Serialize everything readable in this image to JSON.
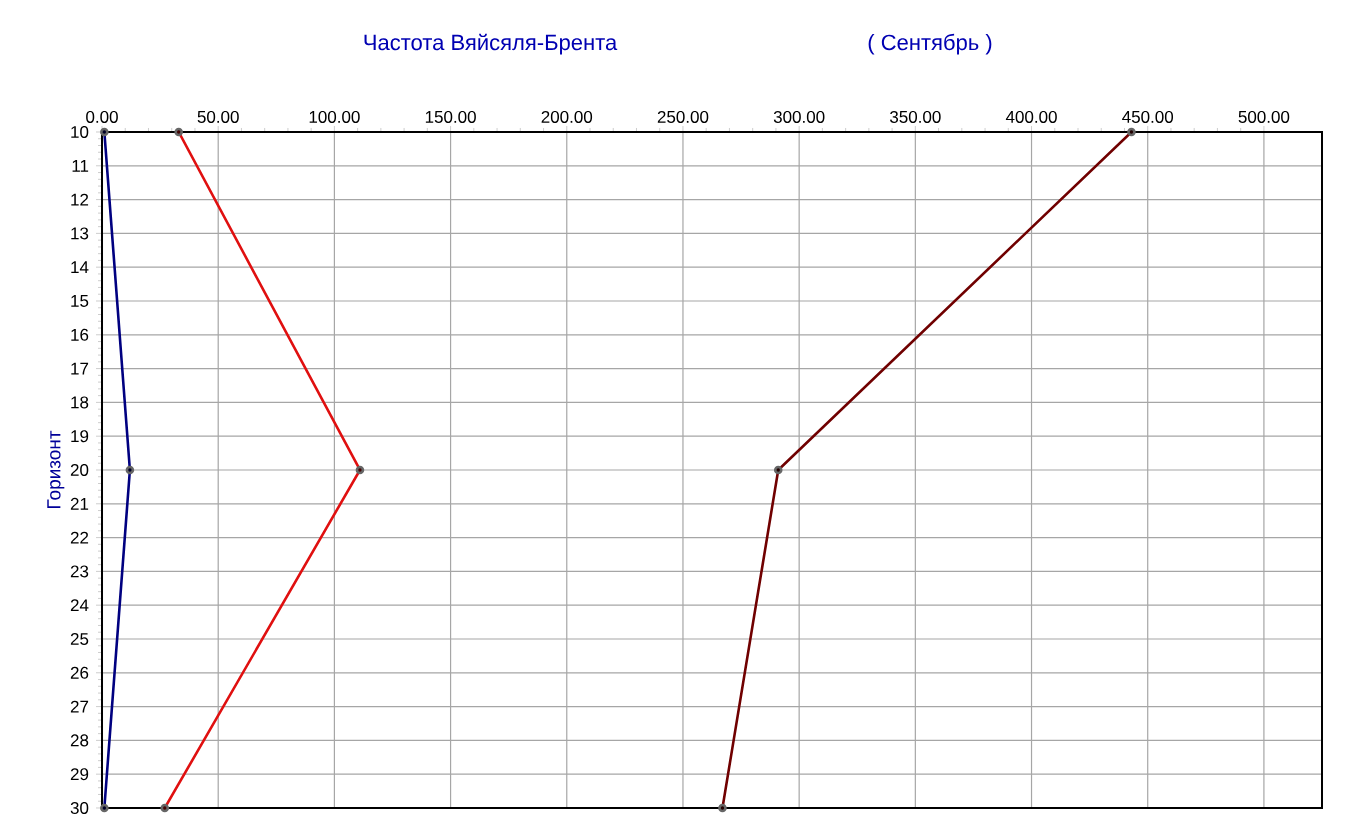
{
  "chart_data": {
    "type": "line",
    "title": "Частота Вяйсяля-Брента",
    "subtitle": "( Сентябрь )",
    "ylabel": "Горизонт",
    "x": [
      10,
      20,
      30
    ],
    "series": [
      {
        "color": "#000080",
        "values": [
          1,
          12,
          1
        ]
      },
      {
        "color": "#e01010",
        "values": [
          33,
          111,
          27
        ]
      },
      {
        "color": "#700000",
        "values": [
          443,
          291,
          267
        ]
      }
    ],
    "orientation": "horizontal",
    "xlim": [
      0,
      525
    ],
    "xticks": [
      {
        "value": 0,
        "label": "0.00"
      },
      {
        "value": 50,
        "label": "50.00"
      },
      {
        "value": 100,
        "label": "100.00"
      },
      {
        "value": 150,
        "label": "150.00"
      },
      {
        "value": 200,
        "label": "200.00"
      },
      {
        "value": 250,
        "label": "250.00"
      },
      {
        "value": 300,
        "label": "300.00"
      },
      {
        "value": 350,
        "label": "350.00"
      },
      {
        "value": 400,
        "label": "400.00"
      },
      {
        "value": 450,
        "label": "450.00"
      },
      {
        "value": 500,
        "label": "500.00"
      }
    ],
    "ylim": [
      30,
      10
    ],
    "yticks": [
      10,
      11,
      12,
      13,
      14,
      15,
      16,
      17,
      18,
      19,
      20,
      21,
      22,
      23,
      24,
      25,
      26,
      27,
      28,
      29,
      30
    ],
    "grid": true,
    "marker": "circle",
    "line_style": "solid"
  }
}
